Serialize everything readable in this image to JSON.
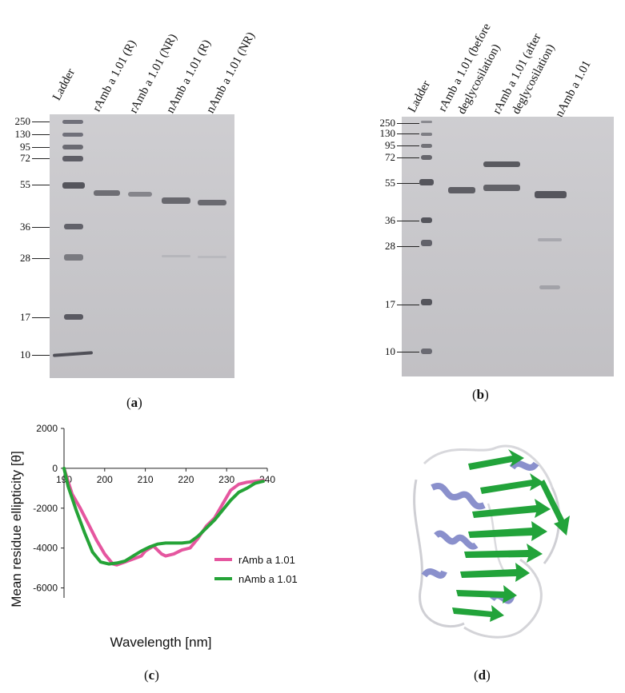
{
  "panel_a": {
    "caption_open": "(",
    "caption_letter": "a",
    "caption_close": ")",
    "lanes": [
      "Ladder",
      "rAmb a 1.01 (R)",
      "rAmb a 1.01 (NR)",
      "nAmb a 1.01 (R)",
      "nAmb a 1.01 (NR)"
    ],
    "markers": [
      "250",
      "130",
      "95",
      "72",
      "55",
      "36",
      "28",
      "17",
      "10"
    ]
  },
  "panel_b": {
    "caption_open": "(",
    "caption_letter": "b",
    "caption_close": ")",
    "lanes": [
      "Ladder",
      "rAmb a 1.01 (before",
      "deglycosilation)",
      "rAmb a 1.01 (after",
      "deglycosilation)",
      "nAmb a 1.01"
    ],
    "markers": [
      "250",
      "130",
      "95",
      "72",
      "55",
      "36",
      "28",
      "17",
      "10"
    ]
  },
  "panel_c": {
    "caption_open": "(",
    "caption_letter": "c",
    "caption_close": ")"
  },
  "panel_d": {
    "caption_open": "(",
    "caption_letter": "d",
    "caption_close": ")"
  },
  "chart_data": {
    "type": "line",
    "title": "",
    "xlabel": "Wavelength [nm]",
    "ylabel": "Mean residue ellipticity [θ]",
    "xlim": [
      190,
      240
    ],
    "ylim": [
      -6500,
      2000
    ],
    "x_ticks": [
      190,
      200,
      210,
      220,
      230,
      240
    ],
    "y_ticks": [
      2000,
      0,
      -2000,
      -4000,
      -6000
    ],
    "legend_position": "bottom-right",
    "series": [
      {
        "name": "rAmb a 1.01",
        "color": "#e5569f",
        "x": [
          190,
          192,
          194,
          196,
          198,
          200,
          202,
          203,
          205,
          207,
          209,
          210,
          212,
          214,
          215,
          217,
          219,
          221,
          223,
          225,
          227,
          229,
          231,
          233,
          235,
          237,
          239
        ],
        "values": [
          0,
          -1300,
          -2000,
          -2800,
          -3600,
          -4300,
          -4800,
          -4850,
          -4700,
          -4550,
          -4400,
          -4150,
          -3900,
          -4300,
          -4400,
          -4300,
          -4100,
          -4000,
          -3500,
          -2900,
          -2500,
          -1800,
          -1100,
          -800,
          -700,
          -650,
          -600
        ]
      },
      {
        "name": "nAmb a 1.01",
        "color": "#25a337",
        "x": [
          190,
          191,
          193,
          195,
          197,
          199,
          201,
          203,
          205,
          207,
          209,
          211,
          213,
          215,
          217,
          219,
          221,
          223,
          225,
          227,
          229,
          231,
          233,
          235,
          237,
          239
        ],
        "values": [
          0,
          -900,
          -2100,
          -3200,
          -4200,
          -4700,
          -4800,
          -4750,
          -4650,
          -4400,
          -4150,
          -3950,
          -3800,
          -3750,
          -3750,
          -3750,
          -3700,
          -3400,
          -3000,
          -2600,
          -2100,
          -1600,
          -1200,
          -1000,
          -750,
          -650
        ]
      }
    ]
  },
  "colors": {
    "gel": "#c9c8cc",
    "band": "#6a6a6e",
    "helix": "#8a90cc",
    "sheet": "#22a33a"
  }
}
